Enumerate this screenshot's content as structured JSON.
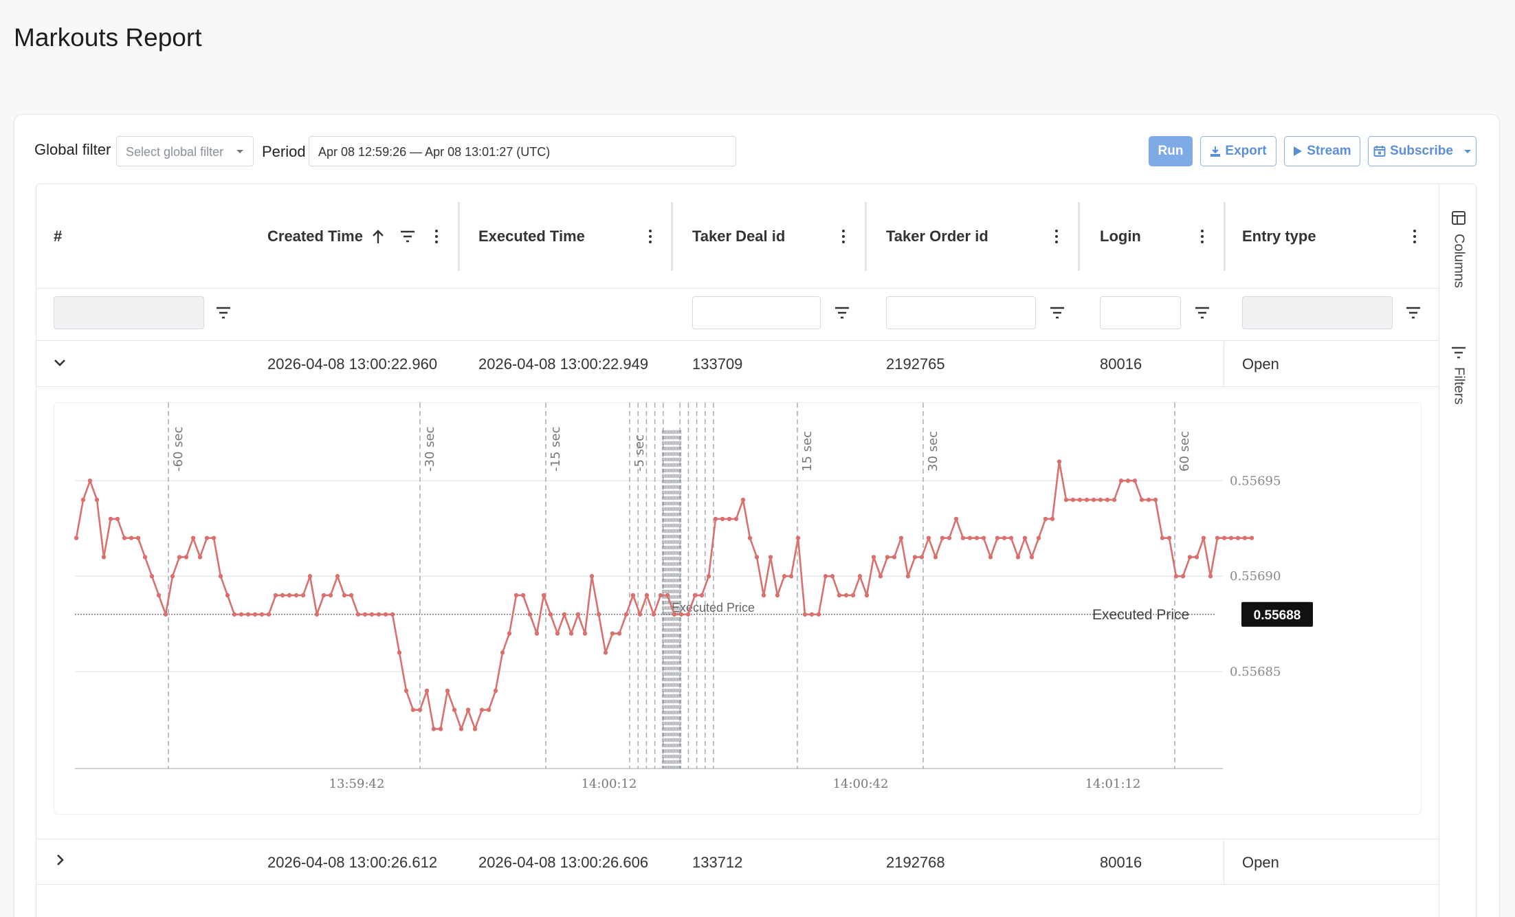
{
  "page": {
    "title": "Markouts Report"
  },
  "toolbar": {
    "global_filter_label": "Global filter",
    "global_filter_placeholder": "Select global filter",
    "period_label": "Period",
    "period_value": "Apr 08 12:59:26 — Apr 08 13:01:27 (UTC)",
    "run_label": "Run",
    "export_label": "Export",
    "stream_label": "Stream",
    "subscribe_label": "Subscribe"
  },
  "grid": {
    "columns": [
      "#",
      "Created Time",
      "Executed Time",
      "Taker Deal id",
      "Taker Order id",
      "Login",
      "Entry type"
    ],
    "sort_column": "Created Time",
    "sort_direction": "asc",
    "rows": [
      {
        "created": "2026-04-08 13:00:22.960",
        "executed": "2026-04-08 13:00:22.949",
        "deal_id": "133709",
        "order_id": "2192765",
        "login": "80016",
        "entry_type": "Open",
        "expanded": true
      },
      {
        "created": "2026-04-08 13:00:26.612",
        "executed": "2026-04-08 13:00:26.606",
        "deal_id": "133712",
        "order_id": "2192768",
        "login": "80016",
        "entry_type": "Open",
        "expanded": false
      }
    ]
  },
  "side_panel": {
    "columns_label": "Columns",
    "filters_label": "Filters"
  },
  "colors": {
    "accent": "#7eaae6",
    "series": "#d9706e",
    "badge": "#111111"
  },
  "chart_data": {
    "type": "line",
    "x_ticks": [
      "13:59:42",
      "14:00:12",
      "14:00:42",
      "14:01:12"
    ],
    "y_ticks": [
      "0.55685",
      "0.55690",
      "0.55695"
    ],
    "ylim": [
      0.5568,
      0.55698
    ],
    "reference_line": {
      "label": "Executed Price",
      "value": 0.55688,
      "badge": "0.55688"
    },
    "markout_labels": [
      "-60 sec",
      "-30 sec",
      "-15 sec",
      "-5 sec",
      "15 sec",
      "30 sec",
      "60 sec"
    ],
    "markout_offsets": [
      -60,
      -30,
      -15,
      -5,
      -4,
      -3,
      -2,
      -1,
      1,
      2,
      3,
      4,
      5,
      15,
      30,
      60
    ],
    "series": [
      {
        "values": [
          0.55692,
          0.55694,
          0.55695,
          0.55694,
          0.55691,
          0.55693,
          0.55693,
          0.55692,
          0.55692,
          0.55692,
          0.55691,
          0.5569,
          0.55689,
          0.55688,
          0.5569,
          0.55691,
          0.55691,
          0.55692,
          0.55691,
          0.55692,
          0.55692,
          0.5569,
          0.55689,
          0.55688,
          0.55688,
          0.55688,
          0.55688,
          0.55688,
          0.55688,
          0.55689,
          0.55689,
          0.55689,
          0.55689,
          0.55689,
          0.5569,
          0.55688,
          0.55689,
          0.55689,
          0.5569,
          0.55689,
          0.55689,
          0.55688,
          0.55688,
          0.55688,
          0.55688,
          0.55688,
          0.55688,
          0.55686,
          0.55684,
          0.55683,
          0.55683,
          0.55684,
          0.55682,
          0.55682,
          0.55684,
          0.55683,
          0.55682,
          0.55683,
          0.55682,
          0.55683,
          0.55683,
          0.55684,
          0.55686,
          0.55687,
          0.55689,
          0.55689,
          0.55688,
          0.55687,
          0.55689,
          0.55688,
          0.55687,
          0.55688,
          0.55687,
          0.55688,
          0.55687,
          0.5569,
          0.55688,
          0.55686,
          0.55687,
          0.55687,
          0.55688,
          0.55689,
          0.55688,
          0.55689,
          0.55688,
          0.55689,
          0.55689,
          0.55688,
          0.55688,
          0.55688,
          0.55689,
          0.55689,
          0.5569,
          0.55693,
          0.55693,
          0.55693,
          0.55693,
          0.55694,
          0.55692,
          0.55691,
          0.55689,
          0.55691,
          0.55689,
          0.5569,
          0.5569,
          0.55692,
          0.55688,
          0.55688,
          0.55688,
          0.5569,
          0.5569,
          0.55689,
          0.55689,
          0.55689,
          0.5569,
          0.55689,
          0.55691,
          0.5569,
          0.55691,
          0.55691,
          0.55692,
          0.5569,
          0.55691,
          0.55691,
          0.55692,
          0.55691,
          0.55692,
          0.55692,
          0.55693,
          0.55692,
          0.55692,
          0.55692,
          0.55692,
          0.55691,
          0.55692,
          0.55692,
          0.55692,
          0.55691,
          0.55692,
          0.55691,
          0.55692,
          0.55693,
          0.55693,
          0.55696,
          0.55694,
          0.55694,
          0.55694,
          0.55694,
          0.55694,
          0.55694,
          0.55694,
          0.55694,
          0.55695,
          0.55695,
          0.55695,
          0.55694,
          0.55694,
          0.55694,
          0.55692,
          0.55692,
          0.5569,
          0.5569,
          0.55691,
          0.55691,
          0.55692,
          0.5569,
          0.55692,
          0.55692,
          0.55692,
          0.55692,
          0.55692,
          0.55692
        ]
      }
    ]
  }
}
